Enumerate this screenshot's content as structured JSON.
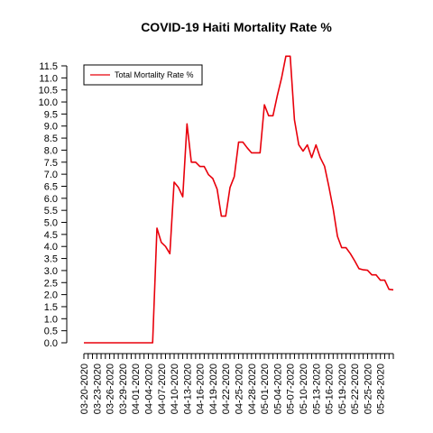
{
  "chart_data": {
    "type": "line",
    "title": "COVID-19 Haiti Mortality Rate %",
    "xlabel": "",
    "ylabel": "",
    "ylim": [
      0,
      11.5
    ],
    "yticks": [
      "0.0",
      "0.5",
      "1.0",
      "1.5",
      "2.0",
      "2.5",
      "3.0",
      "3.5",
      "4.0",
      "4.5",
      "5.0",
      "5.5",
      "6.0",
      "6.5",
      "7.0",
      "7.5",
      "8.0",
      "8.5",
      "9.0",
      "9.5",
      "10.0",
      "10.5",
      "11.0",
      "11.5"
    ],
    "x_tick_labels": [
      "03-20-2020",
      "03-23-2020",
      "03-26-2020",
      "03-29-2020",
      "04-01-2020",
      "04-04-2020",
      "04-07-2020",
      "04-10-2020",
      "04-13-2020",
      "04-16-2020",
      "04-19-2020",
      "04-22-2020",
      "04-25-2020",
      "04-28-2020",
      "05-01-2020",
      "05-04-2020",
      "05-07-2020",
      "05-10-2020",
      "05-13-2020",
      "05-16-2020",
      "05-19-2020",
      "05-22-2020",
      "05-25-2020",
      "05-28-2020"
    ],
    "legend": {
      "position": "top-left",
      "entries": [
        "Total Mortality Rate %"
      ]
    },
    "series": [
      {
        "name": "Total Mortality Rate %",
        "color": "#e8000b",
        "values": [
          0.0,
          0.0,
          0.0,
          0.0,
          0.0,
          0.0,
          0.0,
          0.0,
          0.0,
          0.0,
          0.0,
          0.0,
          0.0,
          0.0,
          0.0,
          0.0,
          0.0,
          4.76,
          4.17,
          4.0,
          3.7,
          6.67,
          6.45,
          6.06,
          9.09,
          7.5,
          7.5,
          7.32,
          7.32,
          6.98,
          6.82,
          6.38,
          5.26,
          5.26,
          6.45,
          6.9,
          8.33,
          8.33,
          8.1,
          7.89,
          7.89,
          7.89,
          9.88,
          9.43,
          9.43,
          10.26,
          10.99,
          11.9,
          11.9,
          9.26,
          8.22,
          7.96,
          8.22,
          7.69,
          8.22,
          7.69,
          7.33,
          6.5,
          5.57,
          4.42,
          3.95,
          3.95,
          3.7,
          3.41,
          3.08,
          3.03,
          3.01,
          2.82,
          2.82,
          2.6,
          2.6,
          2.22,
          2.2
        ]
      }
    ]
  }
}
